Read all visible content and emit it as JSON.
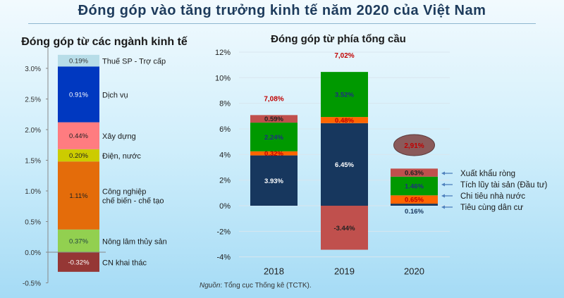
{
  "title": "Đóng góp vào tăng trưởng kinh tế năm 2020 của Việt Nam",
  "source": {
    "label": "Nguồn",
    "text": ": Tổng cục Thống kê (TCTK)."
  },
  "chart_data": [
    {
      "type": "bar",
      "stacked": true,
      "title": "Đóng góp từ các ngành kinh tế",
      "ylim": [
        -0.5,
        3.0
      ],
      "yticks": [
        "-0.5%",
        "0.0%",
        "0.5%",
        "1.0%",
        "1.5%",
        "2.0%",
        "2.5%",
        "3.0%"
      ],
      "ytick_values": [
        -0.5,
        0,
        0.5,
        1,
        1.5,
        2,
        2.5,
        3
      ],
      "grid": false,
      "segments": [
        {
          "name": "CN khai thác",
          "value": -0.32,
          "label": "-0.32%",
          "color": "#953735",
          "label_color": "#ffffff"
        },
        {
          "name": "Nông lâm thủy sản",
          "value": 0.37,
          "label": "0.37%",
          "color": "#92d050",
          "label_color": "#1f3f3f"
        },
        {
          "name": "Công nghiệp|chế biến - chế tạo",
          "value": 1.11,
          "label": "1.11%",
          "color": "#e46c0a",
          "label_color": "#222222"
        },
        {
          "name": "Điện, nước",
          "value": 0.2,
          "label": "0.20%",
          "color": "#cccc00",
          "label_color": "#222222"
        },
        {
          "name": "Xây dựng",
          "value": 0.44,
          "label": "0.44%",
          "color": "#ff7c80",
          "label_color": "#222222"
        },
        {
          "name": "Dịch vụ",
          "value": 0.91,
          "label": "0.91%",
          "color": "#0038c0",
          "label_color": "#ffffff"
        },
        {
          "name": "Thuế SP - Trợ cấp",
          "value": 0.19,
          "label": "0.19%",
          "color": "#b7dde8",
          "label_color": "#333333"
        }
      ]
    },
    {
      "type": "bar",
      "stacked": true,
      "title": "Đóng góp từ phía tổng cầu",
      "categories": [
        "2018",
        "2019",
        "2020"
      ],
      "ylim": [
        -4,
        12
      ],
      "yticks": [
        "-4%",
        "-2%",
        "0%",
        "2%",
        "4%",
        "6%",
        "8%",
        "10%",
        "12%"
      ],
      "ytick_values": [
        -4,
        -2,
        0,
        2,
        4,
        6,
        8,
        10,
        12
      ],
      "grid": true,
      "legend_placement": "right",
      "totals": [
        "7,08%",
        "7,02%",
        "2,91%"
      ],
      "total_color": "#c00000",
      "series": [
        {
          "name": "Tiêu cùng dân cư",
          "values": [
            3.93,
            6.45,
            0.16
          ],
          "labels": [
            "3.93%",
            "6.45%",
            "0.16%"
          ],
          "color": "#17375e",
          "label_color": "#ffffff"
        },
        {
          "name": "Chi tiêu nhà nước",
          "values": [
            0.32,
            0.48,
            0.65
          ],
          "labels": [
            "0.32%",
            "0.48%",
            "0.65%"
          ],
          "color": "#ff6600",
          "label_color": "#c00000"
        },
        {
          "name": "Tích lũy tài sản (Đầu tư)",
          "values": [
            2.24,
            3.52,
            1.46
          ],
          "labels": [
            "2.24%",
            "3.52%",
            "1.46%"
          ],
          "color": "#009900",
          "label_color": "#1f2f80"
        },
        {
          "name": "Xuất khẩu ròng",
          "values": [
            0.59,
            -3.44,
            0.63
          ],
          "labels": [
            "0.59%",
            "-3.44%",
            "0.63%"
          ],
          "color": "#c0504d",
          "label_color": "#222222"
        }
      ]
    }
  ]
}
